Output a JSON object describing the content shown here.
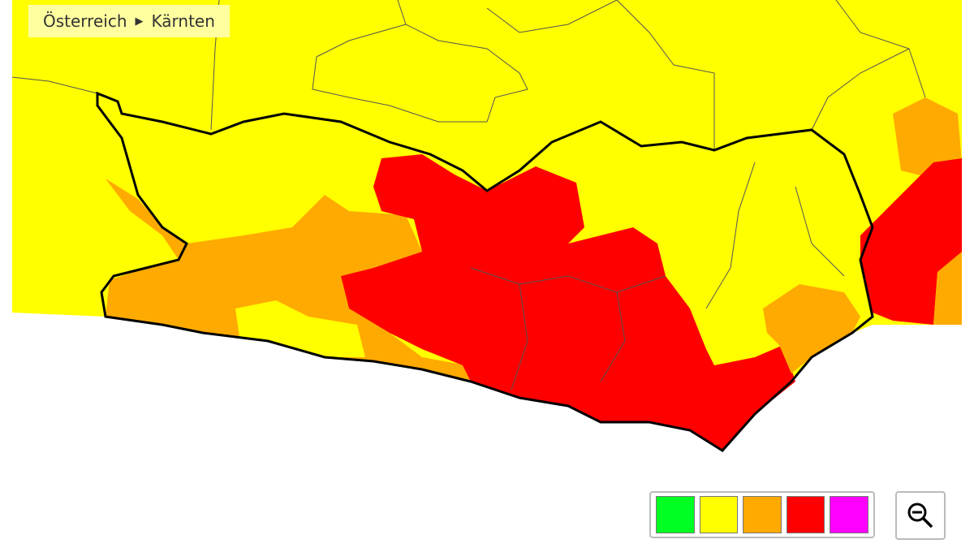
{
  "breadcrumb": {
    "items": [
      "Österreich",
      "Kärnten"
    ],
    "separator": "▶"
  },
  "legend": {
    "colors": [
      "#00ff22",
      "#ffff00",
      "#ffaa00",
      "#ff0000",
      "#ff00ff"
    ]
  },
  "zoom_button": {
    "icon": "zoom-out-icon"
  },
  "map": {
    "region": "Kärnten",
    "colors": {
      "yellow": "#ffff00",
      "orange": "#ffaa00",
      "red": "#ff0000",
      "border": "#000000"
    }
  }
}
